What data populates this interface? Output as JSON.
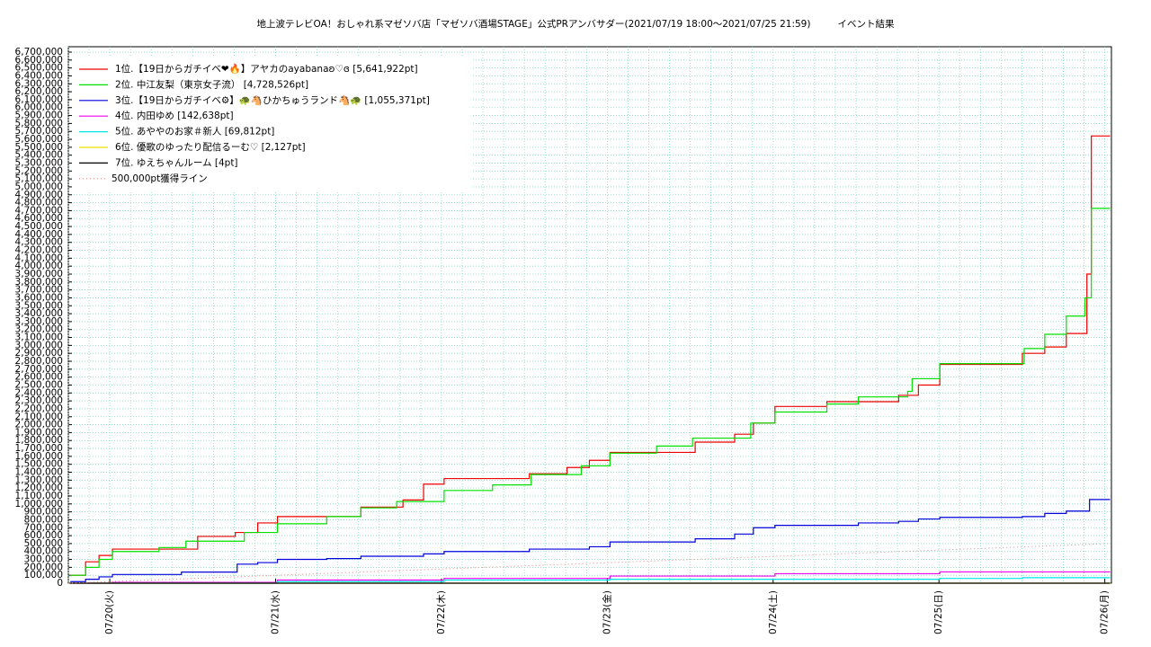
{
  "chart_data": {
    "type": "line",
    "title": "地上波テレビOA！おしゃれ系マゼソバ店「マゼソバ酒場STAGE」公式PRアンバサダー(2021/07/19 18:00〜2021/07/25 21:59)",
    "subtitle": "イベント結果",
    "xlim": [
      19.75,
      26.04
    ],
    "xticks": [
      {
        "value": 20,
        "label": "07/20(火)"
      },
      {
        "value": 21,
        "label": "07/21(水)"
      },
      {
        "value": 22,
        "label": "07/22(木)"
      },
      {
        "value": 23,
        "label": "07/23(金)"
      },
      {
        "value": 24,
        "label": "07/24(土)"
      },
      {
        "value": 25,
        "label": "07/25(日)"
      },
      {
        "value": 26,
        "label": "07/26(月)"
      }
    ],
    "ylim": [
      0,
      6700000
    ],
    "yticks": [
      0,
      {
        "value": 100000,
        "label": "100,000"
      },
      {
        "value": 200000,
        "label": "200,000"
      },
      {
        "value": 300000,
        "label": "300,000"
      },
      {
        "value": 400000,
        "label": "400,000"
      },
      {
        "value": 500000,
        "label": "500,000"
      },
      {
        "value": 600000,
        "label": "600,000"
      },
      {
        "value": 700000,
        "label": "700,000"
      },
      {
        "value": 800000,
        "label": "800,000"
      },
      {
        "value": 900000,
        "label": "900,000"
      },
      {
        "value": 1000000,
        "label": "1,000,000"
      },
      {
        "value": 1100000,
        "label": "1,100,000"
      },
      {
        "value": 1200000,
        "label": "1,200,000"
      },
      {
        "value": 1300000,
        "label": "1,300,000"
      },
      {
        "value": 1400000,
        "label": "1,400,000"
      },
      {
        "value": 1500000,
        "label": "1,500,000"
      },
      {
        "value": 1600000,
        "label": "1,600,000"
      },
      {
        "value": 1700000,
        "label": "1,700,000"
      },
      {
        "value": 1800000,
        "label": "1,800,000"
      },
      {
        "value": 1900000,
        "label": "1,900,000"
      },
      {
        "value": 2000000,
        "label": "2,000,000"
      },
      {
        "value": 2100000,
        "label": "2,100,000"
      },
      {
        "value": 2200000,
        "label": "2,200,000"
      },
      {
        "value": 2300000,
        "label": "2,300,000"
      },
      {
        "value": 2400000,
        "label": "2,400,000"
      },
      {
        "value": 2500000,
        "label": "2,500,000"
      },
      {
        "value": 2600000,
        "label": "2,600,000"
      },
      {
        "value": 2700000,
        "label": "2,700,000"
      },
      {
        "value": 2800000,
        "label": "2,800,000"
      },
      {
        "value": 2900000,
        "label": "2,900,000"
      },
      {
        "value": 3000000,
        "label": "3,000,000"
      },
      {
        "value": 3100000,
        "label": "3,100,000"
      },
      {
        "value": 3200000,
        "label": "3,200,000"
      },
      {
        "value": 3300000,
        "label": "3,300,000"
      },
      {
        "value": 3400000,
        "label": "3,400,000"
      },
      {
        "value": 3500000,
        "label": "3,500,000"
      },
      {
        "value": 3600000,
        "label": "3,600,000"
      },
      {
        "value": 3700000,
        "label": "3,700,000"
      },
      {
        "value": 3800000,
        "label": "3,800,000"
      },
      {
        "value": 3900000,
        "label": "3,900,000"
      },
      {
        "value": 4000000,
        "label": "4,000,000"
      },
      {
        "value": 4100000,
        "label": "4,100,000"
      },
      {
        "value": 4200000,
        "label": "4,200,000"
      },
      {
        "value": 4300000,
        "label": "4,300,000"
      },
      {
        "value": 4400000,
        "label": "4,400,000"
      },
      {
        "value": 4500000,
        "label": "4,500,000"
      },
      {
        "value": 4600000,
        "label": "4,600,000"
      },
      {
        "value": 4700000,
        "label": "4,700,000"
      },
      {
        "value": 4800000,
        "label": "4,800,000"
      },
      {
        "value": 4900000,
        "label": "4,900,000"
      },
      {
        "value": 5000000,
        "label": "5,000,000"
      },
      {
        "value": 5100000,
        "label": "5,100,000"
      },
      {
        "value": 5200000,
        "label": "5,200,000"
      },
      {
        "value": 5300000,
        "label": "5,300,000"
      },
      {
        "value": 5400000,
        "label": "5,400,000"
      },
      {
        "value": 5500000,
        "label": "5,500,000"
      },
      {
        "value": 5600000,
        "label": "5,600,000"
      },
      {
        "value": 5700000,
        "label": "5,700,000"
      },
      {
        "value": 5800000,
        "label": "5,800,000"
      },
      {
        "value": 5900000,
        "label": "5,900,000"
      },
      {
        "value": 6000000,
        "label": "6,000,000"
      },
      {
        "value": 6100000,
        "label": "6,100,000"
      },
      {
        "value": 6200000,
        "label": "6,200,000"
      },
      {
        "value": 6300000,
        "label": "6,300,000"
      },
      {
        "value": 6400000,
        "label": "6,400,000"
      },
      {
        "value": 6500000,
        "label": "6,500,000"
      },
      {
        "value": 6600000,
        "label": "6,600,000"
      },
      {
        "value": 6700000,
        "label": "6,700,000"
      }
    ],
    "grid": true,
    "legend": "upper left",
    "series": [
      {
        "name": "1位.【19日からガチイベ❤🔥】アヤカのayabanaʚ♡ɞ [5,641,922pt]",
        "color": "#ee0000",
        "step": true,
        "x": [
          19.762,
          19.854,
          19.935,
          20.016,
          20.53,
          20.757,
          20.892,
          21.011,
          21.514,
          21.768,
          21.892,
          22.016,
          22.53,
          22.757,
          22.892,
          23.016,
          23.53,
          23.768,
          23.881,
          24.011,
          24.324,
          24.757,
          24.876,
          25.005,
          25.503,
          25.638,
          25.768,
          25.892,
          25.919,
          26.032
        ],
        "values": [
          100000,
          270000,
          350000,
          430000,
          590000,
          640000,
          760000,
          840000,
          960000,
          1050000,
          1250000,
          1320000,
          1380000,
          1460000,
          1550000,
          1650000,
          1780000,
          1880000,
          2020000,
          2230000,
          2290000,
          2370000,
          2500000,
          2760000,
          2900000,
          2980000,
          3150000,
          3900000,
          5641922,
          5641922
        ]
      },
      {
        "name": "2位. 中江友梨（東京女子流） [4,728,526pt]",
        "color": "#00e000",
        "step": true,
        "x": [
          19.762,
          19.854,
          19.935,
          20.016,
          20.297,
          20.459,
          20.811,
          21.011,
          21.308,
          21.514,
          21.73,
          22.016,
          22.308,
          22.541,
          22.843,
          23.016,
          23.297,
          23.514,
          23.865,
          24.011,
          24.324,
          24.514,
          24.811,
          24.838,
          25.005,
          25.514,
          25.638,
          25.768,
          25.881,
          25.919,
          26.032
        ],
        "values": [
          100000,
          200000,
          300000,
          400000,
          450000,
          530000,
          640000,
          750000,
          840000,
          950000,
          1030000,
          1170000,
          1240000,
          1370000,
          1480000,
          1640000,
          1730000,
          1830000,
          2020000,
          2160000,
          2260000,
          2350000,
          2420000,
          2580000,
          2770000,
          2960000,
          3140000,
          3370000,
          3600000,
          4728526,
          4728526
        ]
      },
      {
        "name": "3位.【19日からガチイベ⚙】🐢🐴ひかちゅうランド🐴🐢 [1,055,371pt]",
        "color": "#0000dd",
        "step": true,
        "x": [
          19.762,
          19.854,
          19.935,
          20.016,
          20.432,
          20.768,
          20.892,
          21.011,
          21.308,
          21.514,
          21.892,
          22.016,
          22.53,
          22.892,
          23.016,
          23.53,
          23.768,
          23.881,
          24.011,
          24.514,
          24.757,
          24.876,
          25.005,
          25.503,
          25.638,
          25.768,
          25.908,
          26.032
        ],
        "values": [
          20000,
          50000,
          80000,
          110000,
          140000,
          240000,
          260000,
          300000,
          310000,
          340000,
          370000,
          400000,
          430000,
          460000,
          520000,
          560000,
          620000,
          700000,
          730000,
          760000,
          780000,
          810000,
          830000,
          840000,
          880000,
          910000,
          1055371,
          1055371
        ]
      },
      {
        "name": "4位. 内田ゆめ [142,638pt]",
        "color": "#ee00ee",
        "step": true,
        "x": [
          19.762,
          20.016,
          21.011,
          22.016,
          23.016,
          24.011,
          25.005,
          26.032
        ],
        "values": [
          0,
          10000,
          40000,
          60000,
          90000,
          120000,
          142638,
          142638
        ]
      },
      {
        "name": "5位. あややのお家＃新人 [69,812pt]",
        "color": "#00e8e8",
        "step": true,
        "x": [
          19.762,
          21.011,
          22.016,
          23.016,
          25.005,
          25.503,
          26.032
        ],
        "values": [
          0,
          20000,
          40000,
          50000,
          60000,
          69812,
          69812
        ]
      },
      {
        "name": "6位. 優歌のゆったり配信るーむ♡ [2,127pt]",
        "color": "#f0e000",
        "step": true,
        "x": [
          19.762,
          26.032
        ],
        "values": [
          0,
          2127
        ]
      },
      {
        "name": "7位. ゆえちゃんルーム [4pt]",
        "color": "#000000",
        "step": true,
        "x": [
          19.762,
          26.032
        ],
        "values": [
          4,
          4
        ]
      },
      {
        "name": "500,000pt獲得ライン",
        "color": "#e08888",
        "step": false,
        "dash": true,
        "x": [
          19.75,
          26.032
        ],
        "values": [
          0,
          500000
        ]
      }
    ]
  }
}
